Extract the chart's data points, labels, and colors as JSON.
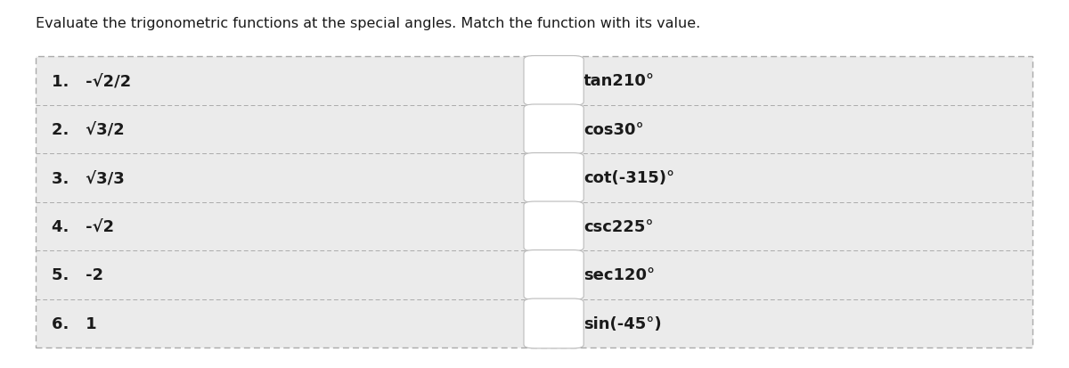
{
  "title": "Evaluate the trigonometric functions at the special angles. Match the function with its value.",
  "title_fontsize": 11.5,
  "title_fontweight": "normal",
  "background_color": "#ebebeb",
  "outer_background": "#ffffff",
  "border_color": "#aaaaaa",
  "left_items": [
    "1.   -√2/2",
    "2.   √3/2",
    "3.   √3/3",
    "4.   -√2",
    "5.   -2",
    "6.   1"
  ],
  "right_items": [
    "tan210°",
    "cos30°",
    "cot(-315)°",
    "csc225°",
    "sec120°",
    "sin(-45°)"
  ],
  "box_color": "#ffffff",
  "box_border_color": "#bbbbbb",
  "text_color": "#1a1a1a",
  "item_fontsize": 13,
  "item_fontweight": "bold"
}
